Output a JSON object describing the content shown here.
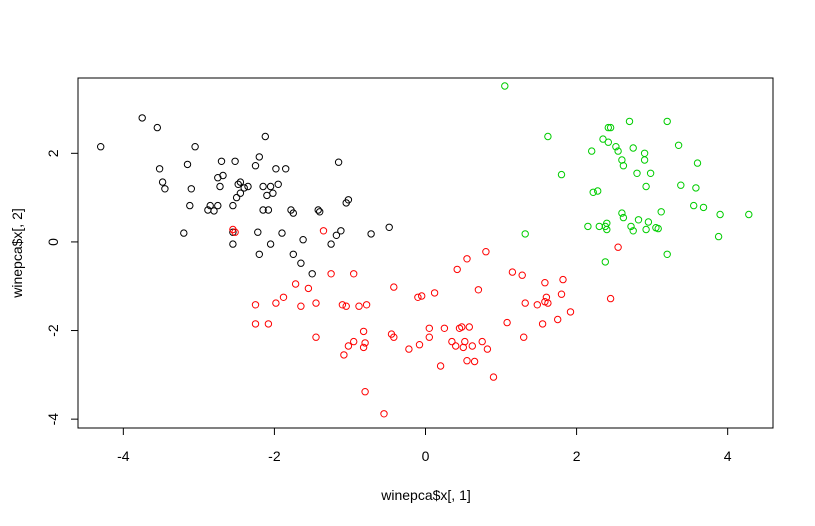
{
  "chart_data": {
    "type": "scatter",
    "title": "",
    "xlabel": "winepca$x[, 1]",
    "ylabel": "winepca$x[, 2]",
    "xlim": [
      -4.6,
      4.6
    ],
    "ylim": [
      -4.2,
      3.7
    ],
    "xticks": [
      "-4",
      "-2",
      "0",
      "2",
      "4"
    ],
    "yticks": [
      "-4",
      "-2",
      "0",
      "2"
    ],
    "grid": false,
    "legend": "none",
    "colors": {
      "black": "#000000",
      "red": "#ff0000",
      "green": "#00cd00"
    },
    "series": [
      {
        "color": "#000000",
        "points": [
          [
            -4.3,
            2.15
          ],
          [
            -3.75,
            2.8
          ],
          [
            -3.55,
            2.58
          ],
          [
            -3.52,
            1.65
          ],
          [
            -3.48,
            1.35
          ],
          [
            -3.45,
            1.2
          ],
          [
            -3.2,
            0.2
          ],
          [
            -3.15,
            1.75
          ],
          [
            -3.12,
            0.82
          ],
          [
            -3.1,
            1.2
          ],
          [
            -3.05,
            2.15
          ],
          [
            -2.88,
            0.72
          ],
          [
            -2.85,
            0.82
          ],
          [
            -2.8,
            0.7
          ],
          [
            -2.75,
            0.82
          ],
          [
            -2.75,
            1.45
          ],
          [
            -2.72,
            1.25
          ],
          [
            -2.7,
            1.82
          ],
          [
            -2.68,
            1.5
          ],
          [
            -2.55,
            0.82
          ],
          [
            -2.52,
            1.82
          ],
          [
            -2.5,
            1.0
          ],
          [
            -2.48,
            1.3
          ],
          [
            -2.45,
            1.35
          ],
          [
            -2.45,
            1.1
          ],
          [
            -2.4,
            1.22
          ],
          [
            -2.35,
            1.25
          ],
          [
            -2.55,
            -0.05
          ],
          [
            -2.55,
            0.22
          ],
          [
            -2.25,
            1.72
          ],
          [
            -2.22,
            0.22
          ],
          [
            -2.2,
            1.92
          ],
          [
            -2.2,
            -0.28
          ],
          [
            -2.15,
            0.72
          ],
          [
            -2.15,
            1.25
          ],
          [
            -2.12,
            2.38
          ],
          [
            -2.1,
            1.05
          ],
          [
            -2.08,
            0.72
          ],
          [
            -2.05,
            1.25
          ],
          [
            -2.05,
            -0.05
          ],
          [
            -2.02,
            1.1
          ],
          [
            -1.98,
            1.65
          ],
          [
            -1.95,
            1.3
          ],
          [
            -1.9,
            0.2
          ],
          [
            -1.85,
            1.65
          ],
          [
            -1.78,
            0.72
          ],
          [
            -1.75,
            0.65
          ],
          [
            -1.75,
            -0.28
          ],
          [
            -1.65,
            -0.48
          ],
          [
            -1.62,
            0.05
          ],
          [
            -1.5,
            -0.72
          ],
          [
            -1.42,
            0.72
          ],
          [
            -1.4,
            0.68
          ],
          [
            -1.25,
            -0.05
          ],
          [
            -1.18,
            0.15
          ],
          [
            -1.15,
            1.8
          ],
          [
            -1.12,
            0.25
          ],
          [
            -1.05,
            0.88
          ],
          [
            -1.02,
            0.95
          ],
          [
            -0.72,
            0.18
          ],
          [
            -0.48,
            0.33
          ]
        ]
      },
      {
        "color": "#ff0000",
        "points": [
          [
            -2.55,
            0.28
          ],
          [
            -2.52,
            0.22
          ],
          [
            -2.25,
            -1.42
          ],
          [
            -2.25,
            -1.85
          ],
          [
            -2.08,
            -1.85
          ],
          [
            -1.98,
            -1.38
          ],
          [
            -1.88,
            -1.25
          ],
          [
            -1.72,
            -0.95
          ],
          [
            -1.65,
            -1.45
          ],
          [
            -1.55,
            -1.05
          ],
          [
            -1.45,
            -1.38
          ],
          [
            -1.45,
            -2.15
          ],
          [
            -1.35,
            0.25
          ],
          [
            -1.25,
            -0.72
          ],
          [
            -1.1,
            -1.42
          ],
          [
            -1.08,
            -2.55
          ],
          [
            -1.05,
            -1.45
          ],
          [
            -1.02,
            -2.35
          ],
          [
            -0.95,
            -2.25
          ],
          [
            -0.95,
            -0.72
          ],
          [
            -0.88,
            -1.45
          ],
          [
            -0.82,
            -2.38
          ],
          [
            -0.82,
            -2.02
          ],
          [
            -0.8,
            -2.28
          ],
          [
            -0.8,
            -3.38
          ],
          [
            -0.78,
            -1.42
          ],
          [
            -0.55,
            -3.88
          ],
          [
            -0.45,
            -2.08
          ],
          [
            -0.42,
            -2.15
          ],
          [
            -0.42,
            -1.02
          ],
          [
            -0.22,
            -2.42
          ],
          [
            -0.1,
            -1.25
          ],
          [
            -0.08,
            -2.32
          ],
          [
            -0.05,
            -1.22
          ],
          [
            0.05,
            -2.15
          ],
          [
            0.05,
            -1.95
          ],
          [
            0.12,
            -1.15
          ],
          [
            0.2,
            -2.8
          ],
          [
            0.25,
            -1.95
          ],
          [
            0.35,
            -2.25
          ],
          [
            0.4,
            -2.35
          ],
          [
            0.42,
            -0.62
          ],
          [
            0.45,
            -1.95
          ],
          [
            0.48,
            -1.92
          ],
          [
            0.5,
            -2.38
          ],
          [
            0.52,
            -2.25
          ],
          [
            0.55,
            -2.68
          ],
          [
            0.55,
            -0.38
          ],
          [
            0.58,
            -1.92
          ],
          [
            0.62,
            -2.35
          ],
          [
            0.65,
            -2.7
          ],
          [
            0.7,
            -1.08
          ],
          [
            0.75,
            -2.25
          ],
          [
            0.8,
            -0.22
          ],
          [
            0.82,
            -2.42
          ],
          [
            0.9,
            -3.05
          ],
          [
            1.08,
            -1.82
          ],
          [
            1.15,
            -0.68
          ],
          [
            1.28,
            -0.75
          ],
          [
            1.3,
            -2.15
          ],
          [
            1.32,
            -1.38
          ],
          [
            1.48,
            -1.42
          ],
          [
            1.55,
            -1.85
          ],
          [
            1.58,
            -0.92
          ],
          [
            1.58,
            -1.35
          ],
          [
            1.6,
            -1.25
          ],
          [
            1.62,
            -1.38
          ],
          [
            1.75,
            -1.75
          ],
          [
            1.8,
            -1.18
          ],
          [
            1.82,
            -0.85
          ],
          [
            1.92,
            -1.58
          ],
          [
            2.45,
            -1.28
          ],
          [
            2.55,
            -0.12
          ]
        ]
      },
      {
        "color": "#00cd00",
        "points": [
          [
            1.05,
            3.52
          ],
          [
            1.32,
            0.18
          ],
          [
            1.62,
            2.38
          ],
          [
            1.8,
            1.52
          ],
          [
            2.15,
            0.35
          ],
          [
            2.2,
            2.05
          ],
          [
            2.22,
            1.12
          ],
          [
            2.28,
            1.15
          ],
          [
            2.3,
            0.35
          ],
          [
            2.35,
            2.32
          ],
          [
            2.38,
            -0.45
          ],
          [
            2.38,
            0.35
          ],
          [
            2.4,
            0.28
          ],
          [
            2.4,
            0.42
          ],
          [
            2.42,
            2.58
          ],
          [
            2.42,
            2.25
          ],
          [
            2.45,
            2.58
          ],
          [
            2.52,
            2.15
          ],
          [
            2.55,
            2.05
          ],
          [
            2.6,
            1.85
          ],
          [
            2.6,
            0.65
          ],
          [
            2.62,
            1.72
          ],
          [
            2.62,
            0.55
          ],
          [
            2.7,
            2.72
          ],
          [
            2.72,
            0.35
          ],
          [
            2.75,
            2.12
          ],
          [
            2.75,
            0.25
          ],
          [
            2.8,
            1.55
          ],
          [
            2.82,
            0.5
          ],
          [
            2.9,
            2.0
          ],
          [
            2.9,
            1.85
          ],
          [
            2.92,
            1.25
          ],
          [
            2.92,
            0.28
          ],
          [
            2.95,
            0.45
          ],
          [
            2.98,
            1.55
          ],
          [
            3.05,
            0.32
          ],
          [
            3.08,
            0.3
          ],
          [
            3.12,
            0.68
          ],
          [
            3.2,
            2.72
          ],
          [
            3.2,
            -0.28
          ],
          [
            3.35,
            2.18
          ],
          [
            3.38,
            1.28
          ],
          [
            3.55,
            0.82
          ],
          [
            3.58,
            1.22
          ],
          [
            3.6,
            1.78
          ],
          [
            3.68,
            0.78
          ],
          [
            3.88,
            0.12
          ],
          [
            3.9,
            0.62
          ],
          [
            4.28,
            0.62
          ]
        ]
      }
    ]
  }
}
